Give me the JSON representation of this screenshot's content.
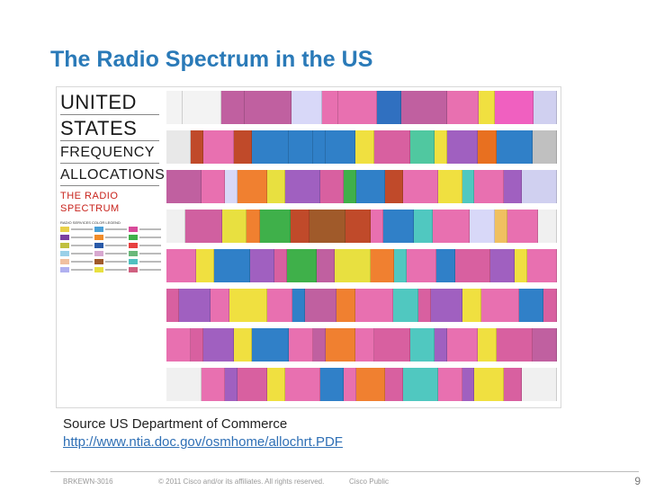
{
  "slide": {
    "title": "The Radio Spectrum in the US",
    "source_line": "Source US Department of Commerce",
    "source_link": "http://www.ntia.doc.gov/osmhome/allochrt.PDF"
  },
  "chart": {
    "title_lines": [
      "UNITED",
      "STATES",
      "FREQUENCY",
      "ALLOCATIONS"
    ],
    "subtitle": "THE RADIO SPECTRUM",
    "legend_header": "RADIO SERVICES COLOR LEGEND",
    "legend_colors": [
      "#e8d04a",
      "#4aa0d8",
      "#d84a9a",
      "#7a3fa0",
      "#f08c2a",
      "#3fb04a",
      "#c0c040",
      "#2a5aa8",
      "#e84040",
      "#9ad0e8",
      "#d8a8d0",
      "#6ab87a",
      "#f0c0a0",
      "#a05a2a",
      "#50c0c0",
      "#b0b0f0",
      "#e8e040",
      "#d06080"
    ],
    "bands": [
      {
        "colors": [
          "#f3f3f3",
          "#f3f3f3",
          "#c060a0",
          "#c060a0",
          "#d8d8f8",
          "#e870b0",
          "#e870b0",
          "#3070c0",
          "#c060a0",
          "#e870b0",
          "#f0e040",
          "#f060c0",
          "#d0d0f0"
        ]
      },
      {
        "colors": [
          "#e8e8e8",
          "#c04a2a",
          "#e870b0",
          "#c04a2a",
          "#3080c8",
          "#3080c8",
          "#3080c8",
          "#3080c8",
          "#f0e040",
          "#d860a0",
          "#50c8a0",
          "#f0e040",
          "#a060c0",
          "#e87020",
          "#3080c8",
          "#c0c0c0"
        ]
      },
      {
        "colors": [
          "#c060a0",
          "#e870b0",
          "#d8d8f8",
          "#f08030",
          "#e8e040",
          "#a060c0",
          "#d860a0",
          "#3fb04a",
          "#3080c8",
          "#c04a2a",
          "#e870b0",
          "#f0e040",
          "#50c8c0",
          "#e870b0",
          "#a060c0",
          "#d0d0f0"
        ]
      },
      {
        "colors": [
          "#f0f0f0",
          "#d060a0",
          "#e8e040",
          "#f08030",
          "#3fb04a",
          "#c04a2a",
          "#a05a2a",
          "#c04a2a",
          "#e870b0",
          "#3080c8",
          "#50c8c0",
          "#e870b0",
          "#d8d8f8",
          "#f0c060",
          "#e870b0",
          "#f0f0f0"
        ]
      },
      {
        "colors": [
          "#e870b0",
          "#f0e040",
          "#3080c8",
          "#a060c0",
          "#d860a0",
          "#3fb04a",
          "#c060a0",
          "#e8e040",
          "#f08030",
          "#50c8c0",
          "#e870b0",
          "#3080c8",
          "#d860a0",
          "#a060c0",
          "#f0e040",
          "#e870b0"
        ]
      },
      {
        "colors": [
          "#d860a0",
          "#a060c0",
          "#e870b0",
          "#f0e040",
          "#e870b0",
          "#3080c8",
          "#c060a0",
          "#f08030",
          "#e870b0",
          "#50c8c0",
          "#d860a0",
          "#a060c0",
          "#f0e040",
          "#e870b0",
          "#3080c8",
          "#d860a0"
        ]
      },
      {
        "colors": [
          "#e870b0",
          "#d860a0",
          "#a060c0",
          "#f0e040",
          "#3080c8",
          "#e870b0",
          "#c060a0",
          "#f08030",
          "#e870b0",
          "#d860a0",
          "#50c8c0",
          "#a060c0",
          "#e870b0",
          "#f0e040",
          "#d860a0",
          "#c060a0"
        ]
      },
      {
        "colors": [
          "#f0f0f0",
          "#e870b0",
          "#a060c0",
          "#d860a0",
          "#f0e040",
          "#e870b0",
          "#3080c8",
          "#e870b0",
          "#f08030",
          "#d860a0",
          "#50c8c0",
          "#e870b0",
          "#a060c0",
          "#f0e040",
          "#d860a0",
          "#f0f0f0"
        ]
      }
    ]
  },
  "footer": {
    "code": "BRKEWN-3016",
    "copyright": "© 2011 Cisco and/or its affiliates. All rights reserved.",
    "classification": "Cisco Public",
    "page_number": "9"
  }
}
